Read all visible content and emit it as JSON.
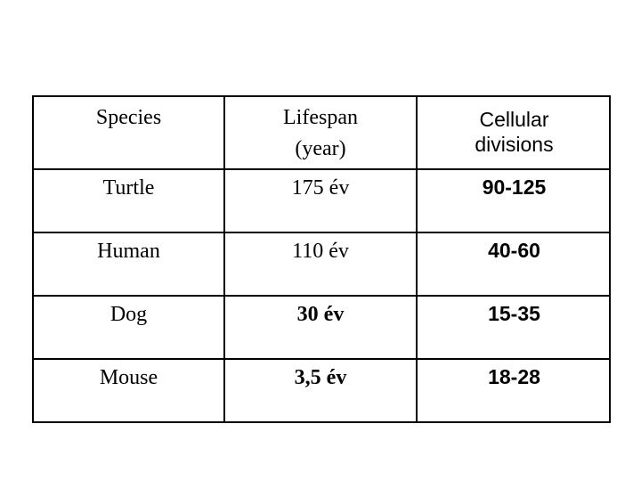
{
  "table": {
    "headers": {
      "species": "Species",
      "lifespan_line1": "Lifespan",
      "lifespan_line2": "(year)",
      "divisions_line1": "Cellular",
      "divisions_line2": "divisions"
    },
    "rows": [
      {
        "species": "Turtle",
        "lifespan": "175 év",
        "divisions": "90-125"
      },
      {
        "species": "Human",
        "lifespan": "110 év",
        "divisions": "40-60"
      },
      {
        "species": "Dog",
        "lifespan": "30 év",
        "divisions": "15-35"
      },
      {
        "species": "Mouse",
        "lifespan": "3,5 év",
        "divisions": "18-28"
      }
    ]
  }
}
